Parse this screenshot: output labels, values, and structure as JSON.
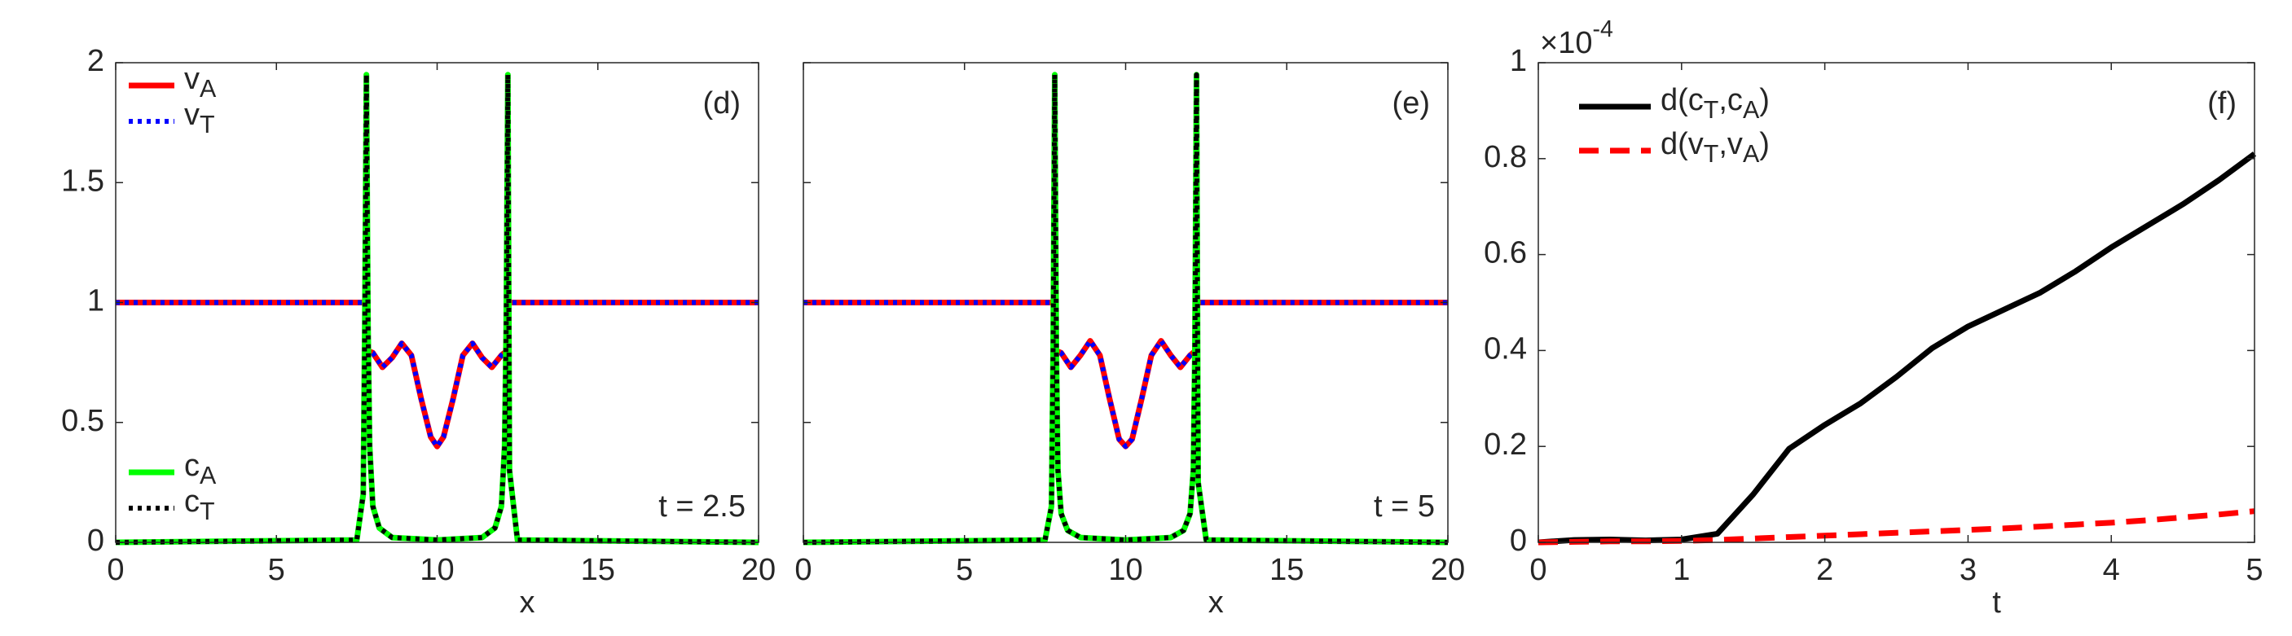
{
  "chart_data": [
    {
      "type": "line",
      "panel_label": "(d)",
      "annotation": "t = 2.5",
      "xlabel": "x",
      "xlim": [
        0,
        20
      ],
      "xticks": [
        0,
        5,
        10,
        15,
        20
      ],
      "ylim": [
        0,
        2
      ],
      "yticks": [
        0,
        0.5,
        1,
        1.5,
        2
      ],
      "ytick_labels": true,
      "series": [
        {
          "name": "v_A",
          "color": "#ff0000",
          "dash": "solid",
          "legend": "upper left",
          "x": [
            0,
            7.8,
            7.82,
            8.0,
            8.3,
            8.6,
            8.9,
            9.2,
            9.5,
            9.8,
            10.0,
            10.2,
            10.5,
            10.8,
            11.1,
            11.4,
            11.7,
            12.0,
            12.18,
            12.2,
            20
          ],
          "values": [
            1,
            1,
            0.8,
            0.79,
            0.73,
            0.77,
            0.83,
            0.78,
            0.6,
            0.44,
            0.4,
            0.44,
            0.6,
            0.78,
            0.83,
            0.77,
            0.73,
            0.78,
            0.8,
            1,
            1
          ]
        },
        {
          "name": "v_T",
          "color": "#0000ff",
          "dash": "dotted",
          "legend": "upper left",
          "x": [
            0,
            7.8,
            7.82,
            8.0,
            8.3,
            8.6,
            8.9,
            9.2,
            9.5,
            9.8,
            10.0,
            10.2,
            10.5,
            10.8,
            11.1,
            11.4,
            11.7,
            12.0,
            12.18,
            12.2,
            20
          ],
          "values": [
            1,
            1,
            0.8,
            0.79,
            0.73,
            0.77,
            0.83,
            0.78,
            0.6,
            0.44,
            0.4,
            0.44,
            0.6,
            0.78,
            0.83,
            0.77,
            0.73,
            0.78,
            0.8,
            1,
            1
          ]
        },
        {
          "name": "c_A",
          "color": "#00ff00",
          "dash": "solid",
          "legend": "lower left",
          "x": [
            0,
            7.5,
            7.7,
            7.75,
            7.8,
            7.85,
            7.9,
            8.0,
            8.2,
            8.6,
            10,
            11.4,
            11.8,
            12.0,
            12.1,
            12.15,
            12.2,
            12.25,
            12.5,
            20
          ],
          "values": [
            0,
            0.01,
            0.2,
            0.9,
            1.95,
            0.9,
            0.4,
            0.15,
            0.06,
            0.02,
            0.01,
            0.02,
            0.06,
            0.15,
            0.4,
            0.9,
            1.95,
            0.3,
            0.01,
            0
          ]
        },
        {
          "name": "c_T",
          "color": "#000000",
          "dash": "dotted",
          "legend": "lower left",
          "x": [
            0,
            7.5,
            7.7,
            7.75,
            7.8,
            7.85,
            7.9,
            8.0,
            8.2,
            8.6,
            10,
            11.4,
            11.8,
            12.0,
            12.1,
            12.15,
            12.2,
            12.25,
            12.5,
            20
          ],
          "values": [
            0,
            0.01,
            0.2,
            0.9,
            1.95,
            0.9,
            0.4,
            0.15,
            0.06,
            0.02,
            0.01,
            0.02,
            0.06,
            0.15,
            0.4,
            0.9,
            1.95,
            0.3,
            0.01,
            0
          ]
        }
      ]
    },
    {
      "type": "line",
      "panel_label": "(e)",
      "annotation": "t = 5",
      "xlabel": "x",
      "xlim": [
        0,
        20
      ],
      "xticks": [
        0,
        5,
        10,
        15,
        20
      ],
      "ylim": [
        0,
        2
      ],
      "yticks": [
        0,
        0.5,
        1,
        1.5,
        2
      ],
      "ytick_labels": false,
      "series": [
        {
          "color": "#ff0000",
          "dash": "solid",
          "x": [
            0,
            7.8,
            7.82,
            8.0,
            8.3,
            8.6,
            8.9,
            9.2,
            9.5,
            9.8,
            10.0,
            10.2,
            10.5,
            10.8,
            11.1,
            11.4,
            11.7,
            12.0,
            12.18,
            12.2,
            20
          ],
          "values": [
            1,
            1,
            0.8,
            0.79,
            0.73,
            0.78,
            0.84,
            0.78,
            0.6,
            0.43,
            0.4,
            0.43,
            0.6,
            0.78,
            0.84,
            0.78,
            0.73,
            0.78,
            0.8,
            1,
            1
          ]
        },
        {
          "color": "#0000ff",
          "dash": "dotted",
          "x": [
            0,
            7.8,
            7.82,
            8.0,
            8.3,
            8.6,
            8.9,
            9.2,
            9.5,
            9.8,
            10.0,
            10.2,
            10.5,
            10.8,
            11.1,
            11.4,
            11.7,
            12.0,
            12.18,
            12.2,
            20
          ],
          "values": [
            1,
            1,
            0.8,
            0.79,
            0.73,
            0.78,
            0.84,
            0.78,
            0.6,
            0.43,
            0.4,
            0.43,
            0.6,
            0.78,
            0.84,
            0.78,
            0.73,
            0.78,
            0.8,
            1,
            1
          ]
        },
        {
          "color": "#00ff00",
          "dash": "solid",
          "x": [
            0,
            7.5,
            7.7,
            7.75,
            7.8,
            7.85,
            7.9,
            8.0,
            8.2,
            8.6,
            10,
            11.4,
            11.8,
            12.0,
            12.1,
            12.15,
            12.2,
            12.25,
            12.5,
            20
          ],
          "values": [
            0,
            0.01,
            0.15,
            0.8,
            1.95,
            0.8,
            0.3,
            0.12,
            0.05,
            0.02,
            0.01,
            0.02,
            0.05,
            0.12,
            0.3,
            0.8,
            1.95,
            0.25,
            0.01,
            0
          ]
        },
        {
          "color": "#000000",
          "dash": "dotted",
          "x": [
            0,
            7.5,
            7.7,
            7.75,
            7.8,
            7.85,
            7.9,
            8.0,
            8.2,
            8.6,
            10,
            11.4,
            11.8,
            12.0,
            12.1,
            12.15,
            12.2,
            12.25,
            12.5,
            20
          ],
          "values": [
            0,
            0.01,
            0.15,
            0.8,
            1.95,
            0.8,
            0.3,
            0.12,
            0.05,
            0.02,
            0.01,
            0.02,
            0.05,
            0.12,
            0.3,
            0.8,
            1.95,
            0.25,
            0.01,
            0
          ]
        }
      ]
    },
    {
      "type": "line",
      "panel_label": "(f)",
      "xlabel": "t",
      "y_exponent": "×10^-4",
      "xlim": [
        0,
        5
      ],
      "xticks": [
        0,
        1,
        2,
        3,
        4,
        5
      ],
      "ylim": [
        0,
        1
      ],
      "yticks": [
        0,
        0.2,
        0.4,
        0.6,
        0.8,
        1
      ],
      "ytick_labels": true,
      "series": [
        {
          "name": "d(c_T,c_A)",
          "color": "#000000",
          "dash": "solid",
          "legend": "upper left",
          "x": [
            0,
            0.25,
            0.5,
            0.75,
            1,
            1.25,
            1.5,
            1.75,
            2,
            2.25,
            2.5,
            2.75,
            3,
            3.25,
            3.5,
            3.75,
            4,
            4.25,
            4.5,
            4.75,
            5
          ],
          "values": [
            0,
            0.005,
            0.006,
            0.004,
            0.006,
            0.018,
            0.1,
            0.195,
            0.245,
            0.29,
            0.345,
            0.405,
            0.45,
            0.485,
            0.52,
            0.565,
            0.615,
            0.66,
            0.705,
            0.755,
            0.81
          ]
        },
        {
          "name": "d(v_T,v_A)",
          "color": "#ff0000",
          "dash": "dashed",
          "legend": "upper left",
          "x": [
            0,
            0.25,
            0.5,
            0.75,
            1,
            1.25,
            1.5,
            1.75,
            2,
            2.25,
            2.5,
            2.75,
            3,
            3.25,
            3.5,
            3.75,
            4,
            4.25,
            4.5,
            4.75,
            5
          ],
          "values": [
            0,
            0.001,
            0.002,
            0.002,
            0.003,
            0.005,
            0.008,
            0.011,
            0.014,
            0.017,
            0.02,
            0.023,
            0.026,
            0.029,
            0.033,
            0.037,
            0.041,
            0.046,
            0.052,
            0.058,
            0.065
          ]
        }
      ]
    }
  ]
}
